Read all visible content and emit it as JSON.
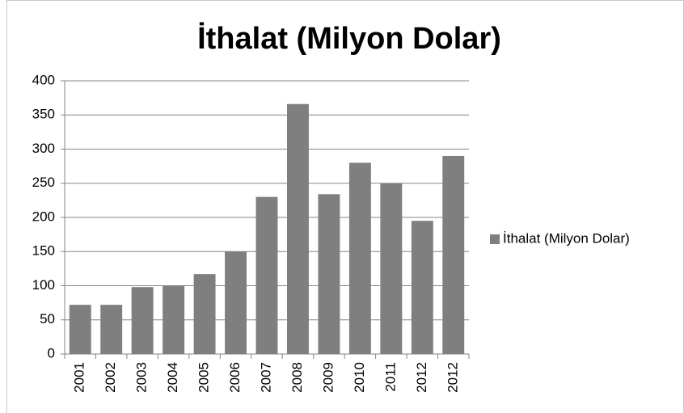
{
  "chart_data": {
    "type": "bar",
    "title": "İthalat (Milyon Dolar)",
    "categories": [
      "2001",
      "2002",
      "2003",
      "2004",
      "2005",
      "2006",
      "2007",
      "2008",
      "2009",
      "2010",
      "2011",
      "2012",
      "2012"
    ],
    "series": [
      {
        "name": "İthalat (Milyon Dolar)",
        "color": "#7f7f7f",
        "values": [
          72,
          72,
          98,
          100,
          117,
          150,
          230,
          366,
          234,
          280,
          250,
          195,
          290
        ]
      }
    ],
    "ylim": [
      0,
      400
    ],
    "yticks": [
      0,
      50,
      100,
      150,
      200,
      250,
      300,
      350,
      400
    ],
    "grid": true,
    "legend": "right"
  }
}
